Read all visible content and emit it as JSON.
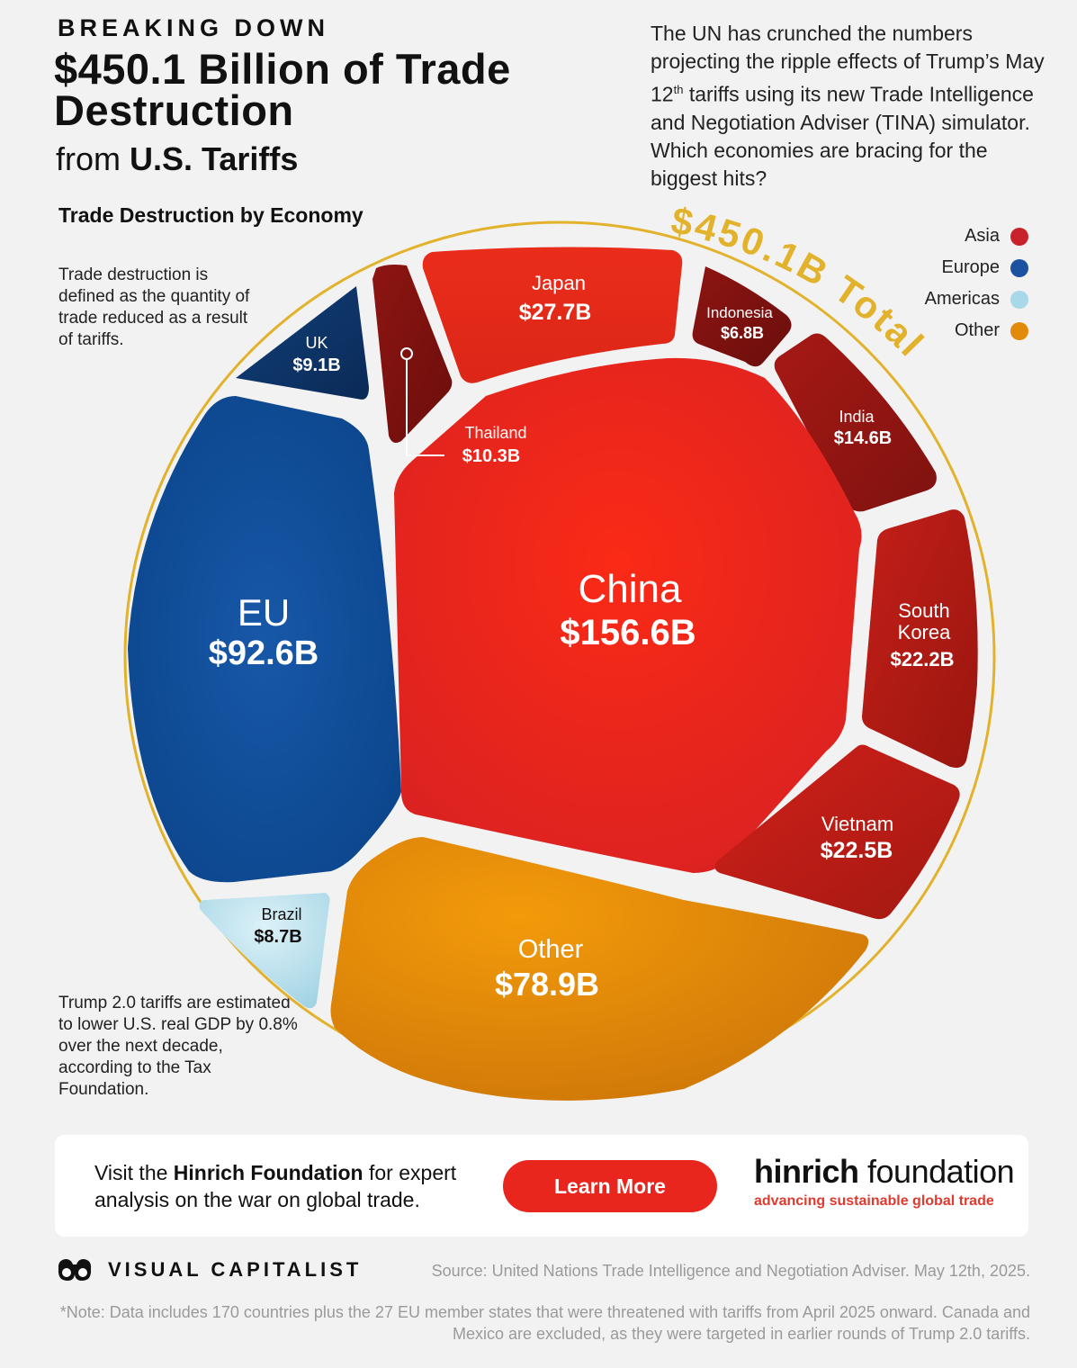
{
  "header": {
    "kicker": "BREAKING DOWN",
    "title": "$450.1 Billion of Trade Destruction",
    "subtitle_pre": "from ",
    "subtitle_bold": "U.S. Tariffs"
  },
  "intro": {
    "part1": "The UN has crunched the numbers projecting the ripple effects of Trump’s May 12",
    "sup": "th",
    "part2": " tariffs using its new Trade Intelligence and Negotiation Adviser (TINA) simulator. Which economies are bracing for the biggest hits?"
  },
  "sidebar": {
    "heading": "Trade Destruction by Economy",
    "definition": "Trade destruction is defined as the quantity of trade reduced as a result of tariffs.",
    "note": "Trump 2.0 tariffs are estimated to lower U.S. real GDP by 0.8% over the next decade, according to the Tax Foundation."
  },
  "legend": [
    {
      "label": "Asia",
      "color": "#c8232c"
    },
    {
      "label": "Europe",
      "color": "#1d52a0"
    },
    {
      "label": "Americas",
      "color": "#a9d8e8"
    },
    {
      "label": "Other",
      "color": "#e38a0c"
    }
  ],
  "chart_data": {
    "type": "voronoi-treemap",
    "title": "$450.1 Billion of Trade Destruction from U.S. Tariffs",
    "total_label": "$450.1B Total",
    "total": 450.1,
    "unit": "Billion USD",
    "series": [
      {
        "name": "China",
        "value": 156.6,
        "label": "$156.6B",
        "region": "Asia"
      },
      {
        "name": "EU",
        "value": 92.6,
        "label": "$92.6B",
        "region": "Europe"
      },
      {
        "name": "Other",
        "value": 78.9,
        "label": "$78.9B",
        "region": "Other"
      },
      {
        "name": "Japan",
        "value": 27.7,
        "label": "$27.7B",
        "region": "Asia"
      },
      {
        "name": "Vietnam",
        "value": 22.5,
        "label": "$22.5B",
        "region": "Asia"
      },
      {
        "name": "South Korea",
        "value": 22.2,
        "label": "$22.2B",
        "region": "Asia"
      },
      {
        "name": "India",
        "value": 14.6,
        "label": "$14.6B",
        "region": "Asia"
      },
      {
        "name": "Thailand",
        "value": 10.3,
        "label": "$10.3B",
        "region": "Asia"
      },
      {
        "name": "UK",
        "value": 9.1,
        "label": "$9.1B",
        "region": "Europe"
      },
      {
        "name": "Brazil",
        "value": 8.7,
        "label": "$8.7B",
        "region": "Americas"
      },
      {
        "name": "Indonesia",
        "value": 6.8,
        "label": "$6.8B",
        "region": "Asia"
      }
    ]
  },
  "cta": {
    "text_pre": "Visit the ",
    "text_bold": "Hinrich Foundation",
    "text_post": " for expert analysis on the war on global trade.",
    "button": "Learn More",
    "logo_bold": "hinrich",
    "logo_rest": " foundation",
    "tagline": "advancing sustainable global trade"
  },
  "footer": {
    "brand": "VISUAL CAPITALIST",
    "source": "Source: United Nations Trade Intelligence and Negotiation Adviser. May 12th, 2025.",
    "note": "*Note: Data includes 170 countries plus the 27 EU member states that were threatened with tariffs from April 2025 onward. Canada and Mexico are excluded, as they were targeted in earlier rounds of Trump 2.0 tariffs."
  }
}
